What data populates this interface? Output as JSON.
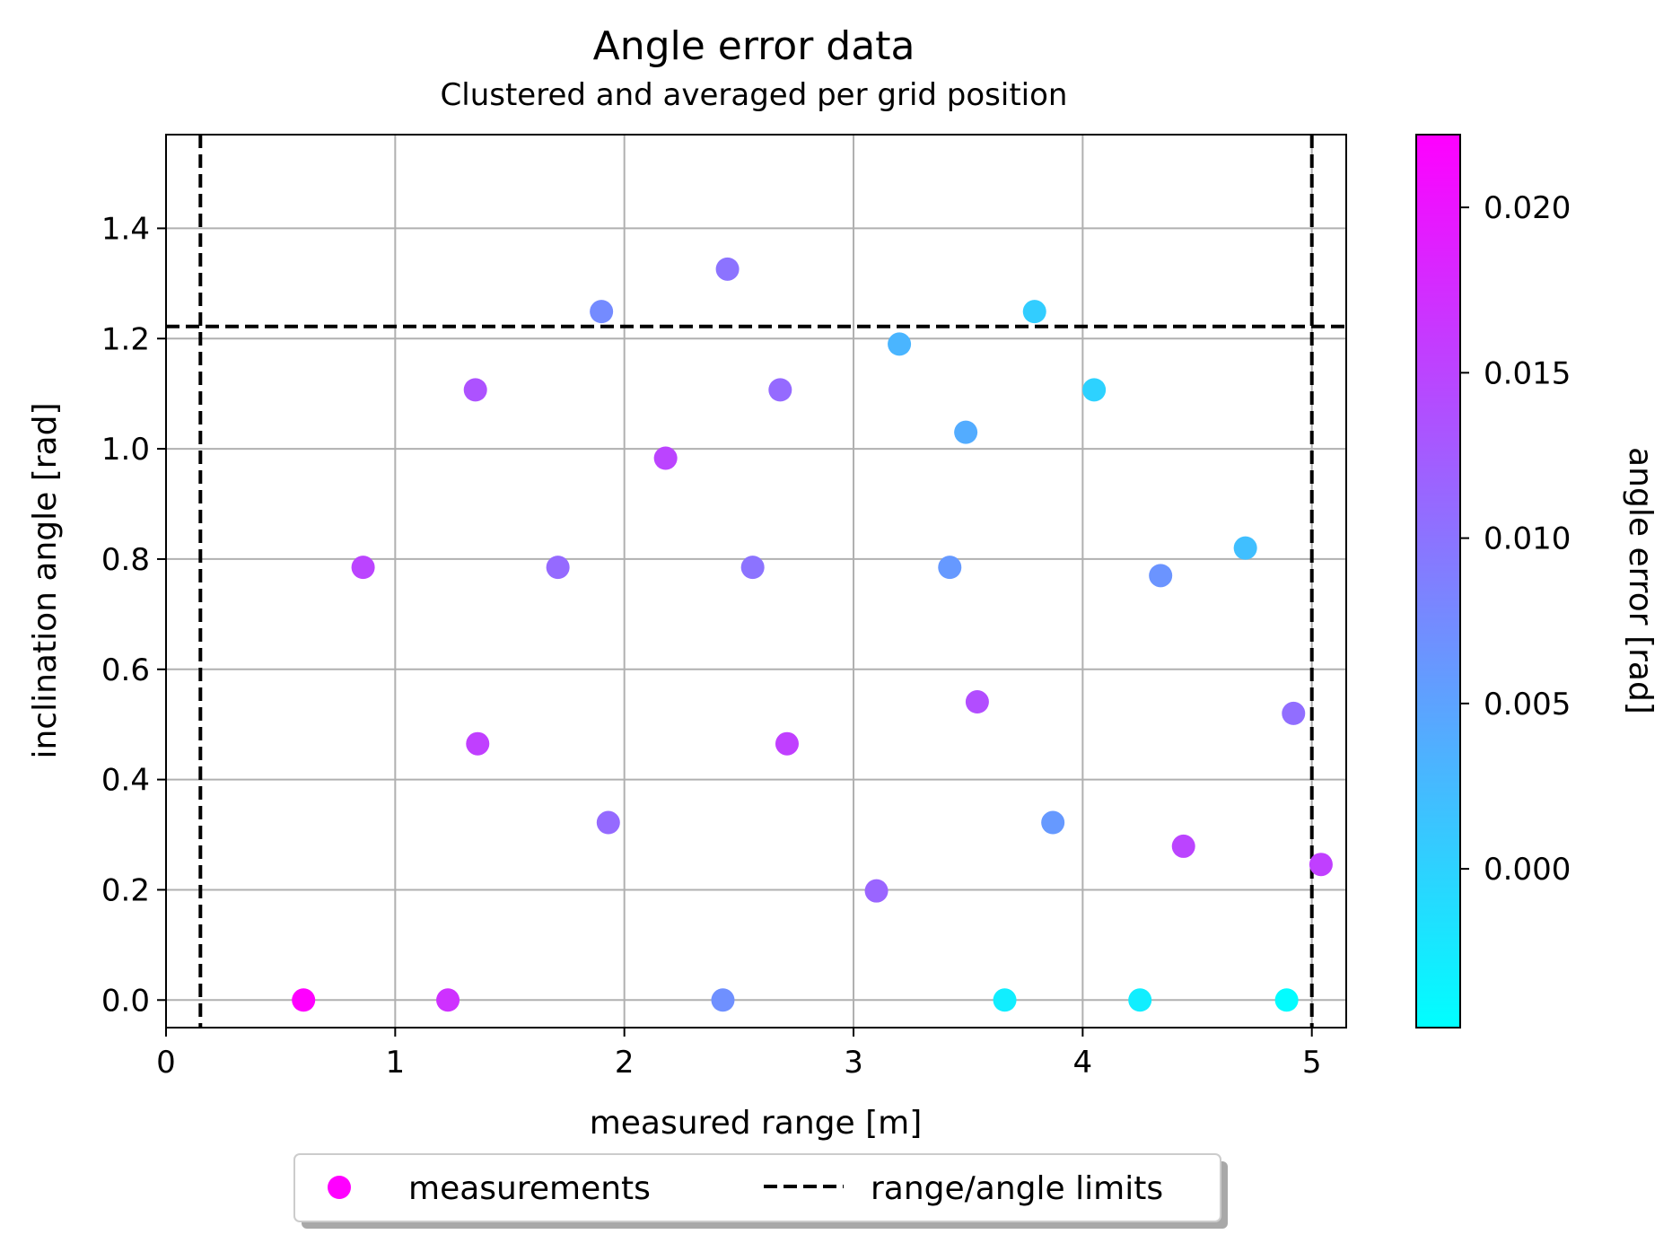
{
  "chart_data": {
    "type": "scatter",
    "title": "Angle error data",
    "subtitle": "Clustered and averaged per grid position",
    "xlabel": "measured range [m]",
    "ylabel": "inclination angle [rad]",
    "xlim": [
      0,
      5.15
    ],
    "ylim": [
      -0.05,
      1.57
    ],
    "xticks": [
      "0",
      "1",
      "2",
      "3",
      "4",
      "5"
    ],
    "yticks": [
      "0.0",
      "0.2",
      "0.4",
      "0.6",
      "0.8",
      "1.0",
      "1.2",
      "1.4"
    ],
    "grid": true,
    "colormap": "cool",
    "colorbar": {
      "label": "angle error [rad]",
      "range": [
        -0.0048,
        0.0222
      ],
      "ticks": [
        "0.000",
        "0.005",
        "0.010",
        "0.015",
        "0.020"
      ],
      "low_color": "#00ffff",
      "high_color": "#ff00ff"
    },
    "limits": {
      "label": "range/angle limits",
      "x_min": 0.15,
      "x_max": 5.0,
      "y_max": 1.222,
      "color": "#000000",
      "style": "dashed"
    },
    "legend": {
      "placement": "below",
      "entries": [
        "measurements",
        "range/angle limits"
      ],
      "marker_color": "#ff00ff"
    },
    "series": [
      {
        "name": "measurements",
        "points": [
          {
            "x": 0.6,
            "y": 0.0,
            "c": 0.0222
          },
          {
            "x": 1.23,
            "y": 0.0,
            "c": 0.017
          },
          {
            "x": 2.43,
            "y": 0.0,
            "c": 0.007
          },
          {
            "x": 3.66,
            "y": 0.0,
            "c": -0.003
          },
          {
            "x": 4.25,
            "y": 0.0,
            "c": -0.003
          },
          {
            "x": 4.89,
            "y": 0.0,
            "c": -0.0045
          },
          {
            "x": 0.86,
            "y": 0.785,
            "c": 0.015
          },
          {
            "x": 1.71,
            "y": 0.785,
            "c": 0.011
          },
          {
            "x": 2.56,
            "y": 0.785,
            "c": 0.01
          },
          {
            "x": 3.42,
            "y": 0.785,
            "c": 0.006
          },
          {
            "x": 4.34,
            "y": 0.77,
            "c": 0.0065
          },
          {
            "x": 4.71,
            "y": 0.82,
            "c": 0.002
          },
          {
            "x": 1.36,
            "y": 0.465,
            "c": 0.0155
          },
          {
            "x": 2.71,
            "y": 0.465,
            "c": 0.0155
          },
          {
            "x": 1.93,
            "y": 0.322,
            "c": 0.011
          },
          {
            "x": 3.1,
            "y": 0.198,
            "c": 0.0115
          },
          {
            "x": 3.54,
            "y": 0.541,
            "c": 0.014
          },
          {
            "x": 3.87,
            "y": 0.322,
            "c": 0.006
          },
          {
            "x": 4.44,
            "y": 0.279,
            "c": 0.015
          },
          {
            "x": 4.92,
            "y": 0.52,
            "c": 0.0105
          },
          {
            "x": 5.04,
            "y": 0.246,
            "c": 0.0155
          },
          {
            "x": 1.35,
            "y": 1.107,
            "c": 0.0135
          },
          {
            "x": 2.68,
            "y": 1.107,
            "c": 0.011
          },
          {
            "x": 2.18,
            "y": 0.983,
            "c": 0.015
          },
          {
            "x": 4.05,
            "y": 1.107,
            "c": 0.0
          },
          {
            "x": 3.49,
            "y": 1.03,
            "c": 0.004
          },
          {
            "x": 3.2,
            "y": 1.19,
            "c": 0.003
          },
          {
            "x": 1.9,
            "y": 1.249,
            "c": 0.0075
          },
          {
            "x": 2.45,
            "y": 1.326,
            "c": 0.01
          },
          {
            "x": 3.79,
            "y": 1.249,
            "c": 0.0005
          }
        ]
      }
    ]
  }
}
